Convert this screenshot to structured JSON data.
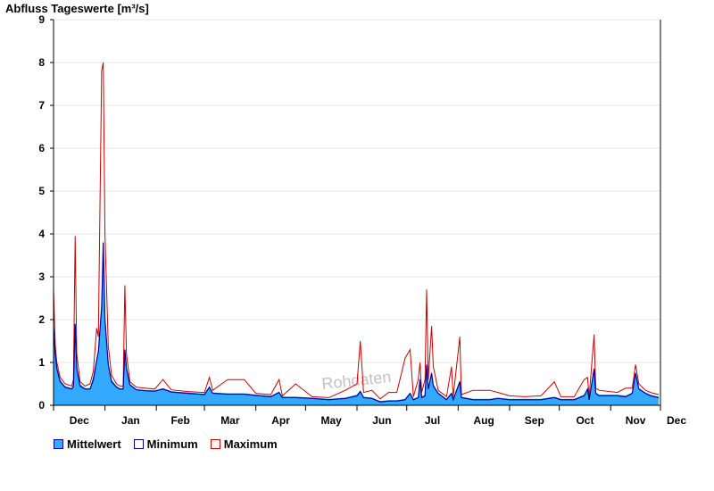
{
  "chart_data": {
    "type": "area",
    "title": "Abfluss Tageswerte [m³/s]",
    "ylim": [
      0,
      9
    ],
    "yticks": [
      "0",
      "1",
      "2",
      "3",
      "4",
      "5",
      "6",
      "7",
      "8",
      "9"
    ],
    "xlabels": [
      "Dec",
      "Jan",
      "Feb",
      "Mar",
      "Apr",
      "May",
      "Jun",
      "Jul",
      "Aug",
      "Sep",
      "Oct",
      "Nov",
      "Dec"
    ],
    "grid": true,
    "legend_position": "bottom-left",
    "watermark": "Rohdaten",
    "colors": {
      "mittelwert_fill": "#33aaff",
      "minimum_line": "#000099",
      "maximum_line": "#cc0000"
    },
    "series": [
      {
        "name": "Mittelwert",
        "points": [
          [
            "2023-12-01",
            2.0
          ],
          [
            "2023-12-02",
            1.3
          ],
          [
            "2023-12-03",
            0.9
          ],
          [
            "2023-12-05",
            0.6
          ],
          [
            "2023-12-08",
            0.45
          ],
          [
            "2023-12-12",
            0.4
          ],
          [
            "2023-12-13",
            0.5
          ],
          [
            "2023-12-14",
            2.0
          ],
          [
            "2023-12-15",
            0.9
          ],
          [
            "2023-12-17",
            0.5
          ],
          [
            "2023-12-20",
            0.4
          ],
          [
            "2023-12-23",
            0.4
          ],
          [
            "2023-12-25",
            0.7
          ],
          [
            "2023-12-27",
            1.1
          ],
          [
            "2023-12-28",
            1.3
          ],
          [
            "2023-12-30",
            2.5
          ],
          [
            "2023-12-31",
            3.9
          ],
          [
            "2024-01-01",
            2.2
          ],
          [
            "2024-01-03",
            1.0
          ],
          [
            "2024-01-05",
            0.6
          ],
          [
            "2024-01-08",
            0.45
          ],
          [
            "2024-01-10",
            0.4
          ],
          [
            "2024-01-12",
            0.4
          ],
          [
            "2024-01-13",
            1.35
          ],
          [
            "2024-01-14",
            0.9
          ],
          [
            "2024-01-16",
            0.5
          ],
          [
            "2024-01-20",
            0.38
          ],
          [
            "2024-01-25",
            0.36
          ],
          [
            "2024-01-31",
            0.35
          ],
          [
            "2024-02-05",
            0.4
          ],
          [
            "2024-02-10",
            0.33
          ],
          [
            "2024-02-20",
            0.3
          ],
          [
            "2024-03-01",
            0.27
          ],
          [
            "2024-03-04",
            0.45
          ],
          [
            "2024-03-06",
            0.3
          ],
          [
            "2024-03-15",
            0.28
          ],
          [
            "2024-03-25",
            0.28
          ],
          [
            "2024-04-01",
            0.25
          ],
          [
            "2024-04-10",
            0.22
          ],
          [
            "2024-04-15",
            0.32
          ],
          [
            "2024-04-17",
            0.2
          ],
          [
            "2024-04-25",
            0.2
          ],
          [
            "2024-05-05",
            0.18
          ],
          [
            "2024-05-15",
            0.15
          ],
          [
            "2024-05-25",
            0.18
          ],
          [
            "2024-06-01",
            0.25
          ],
          [
            "2024-06-03",
            0.35
          ],
          [
            "2024-06-05",
            0.2
          ],
          [
            "2024-06-10",
            0.18
          ],
          [
            "2024-06-15",
            0.1
          ],
          [
            "2024-06-20",
            0.12
          ],
          [
            "2024-06-25",
            0.12
          ],
          [
            "2024-06-30",
            0.15
          ],
          [
            "2024-07-03",
            0.3
          ],
          [
            "2024-07-05",
            0.15
          ],
          [
            "2024-07-08",
            0.2
          ],
          [
            "2024-07-09",
            0.65
          ],
          [
            "2024-07-10",
            0.2
          ],
          [
            "2024-07-12",
            0.25
          ],
          [
            "2024-07-13",
            1.0
          ],
          [
            "2024-07-14",
            0.4
          ],
          [
            "2024-07-16",
            0.8
          ],
          [
            "2024-07-17",
            0.5
          ],
          [
            "2024-07-20",
            0.3
          ],
          [
            "2024-07-25",
            0.15
          ],
          [
            "2024-07-28",
            0.3
          ],
          [
            "2024-07-29",
            0.15
          ],
          [
            "2024-08-02",
            0.6
          ],
          [
            "2024-08-03",
            0.2
          ],
          [
            "2024-08-10",
            0.15
          ],
          [
            "2024-08-20",
            0.15
          ],
          [
            "2024-08-25",
            0.18
          ],
          [
            "2024-09-01",
            0.15
          ],
          [
            "2024-09-10",
            0.15
          ],
          [
            "2024-09-20",
            0.15
          ],
          [
            "2024-09-28",
            0.2
          ],
          [
            "2024-10-02",
            0.15
          ],
          [
            "2024-10-10",
            0.15
          ],
          [
            "2024-10-16",
            0.25
          ],
          [
            "2024-10-18",
            0.4
          ],
          [
            "2024-10-19",
            0.15
          ],
          [
            "2024-10-22",
            0.9
          ],
          [
            "2024-10-23",
            0.3
          ],
          [
            "2024-10-25",
            0.25
          ],
          [
            "2024-11-05",
            0.25
          ],
          [
            "2024-11-10",
            0.22
          ],
          [
            "2024-11-14",
            0.3
          ],
          [
            "2024-11-16",
            0.8
          ],
          [
            "2024-11-18",
            0.4
          ],
          [
            "2024-11-22",
            0.3
          ],
          [
            "2024-11-25",
            0.25
          ],
          [
            "2024-11-30",
            0.2
          ]
        ]
      },
      {
        "name": "Minimum",
        "points": [
          [
            "2023-12-01",
            1.8
          ],
          [
            "2023-12-02",
            1.2
          ],
          [
            "2023-12-03",
            0.85
          ],
          [
            "2023-12-05",
            0.55
          ],
          [
            "2023-12-08",
            0.42
          ],
          [
            "2023-12-12",
            0.38
          ],
          [
            "2023-12-13",
            0.45
          ],
          [
            "2023-12-14",
            1.9
          ],
          [
            "2023-12-15",
            0.85
          ],
          [
            "2023-12-17",
            0.45
          ],
          [
            "2023-12-20",
            0.38
          ],
          [
            "2023-12-23",
            0.38
          ],
          [
            "2023-12-25",
            0.6
          ],
          [
            "2023-12-27",
            1.05
          ],
          [
            "2023-12-28",
            1.25
          ],
          [
            "2023-12-30",
            2.3
          ],
          [
            "2023-12-31",
            3.8
          ],
          [
            "2024-01-01",
            2.0
          ],
          [
            "2024-01-03",
            0.95
          ],
          [
            "2024-01-05",
            0.55
          ],
          [
            "2024-01-08",
            0.42
          ],
          [
            "2024-01-10",
            0.38
          ],
          [
            "2024-01-12",
            0.38
          ],
          [
            "2024-01-13",
            1.3
          ],
          [
            "2024-01-14",
            0.85
          ],
          [
            "2024-01-16",
            0.48
          ],
          [
            "2024-01-20",
            0.36
          ],
          [
            "2024-01-25",
            0.34
          ],
          [
            "2024-01-31",
            0.33
          ],
          [
            "2024-02-05",
            0.38
          ],
          [
            "2024-02-10",
            0.31
          ],
          [
            "2024-02-20",
            0.28
          ],
          [
            "2024-03-01",
            0.25
          ],
          [
            "2024-03-04",
            0.42
          ],
          [
            "2024-03-06",
            0.28
          ],
          [
            "2024-03-15",
            0.26
          ],
          [
            "2024-03-25",
            0.26
          ],
          [
            "2024-04-01",
            0.23
          ],
          [
            "2024-04-10",
            0.2
          ],
          [
            "2024-04-15",
            0.3
          ],
          [
            "2024-04-17",
            0.18
          ],
          [
            "2024-04-25",
            0.18
          ],
          [
            "2024-05-05",
            0.16
          ],
          [
            "2024-05-15",
            0.13
          ],
          [
            "2024-05-25",
            0.16
          ],
          [
            "2024-06-01",
            0.22
          ],
          [
            "2024-06-03",
            0.32
          ],
          [
            "2024-06-05",
            0.18
          ],
          [
            "2024-06-10",
            0.16
          ],
          [
            "2024-06-15",
            0.08
          ],
          [
            "2024-06-20",
            0.1
          ],
          [
            "2024-06-25",
            0.1
          ],
          [
            "2024-06-30",
            0.13
          ],
          [
            "2024-07-03",
            0.28
          ],
          [
            "2024-07-05",
            0.13
          ],
          [
            "2024-07-08",
            0.18
          ],
          [
            "2024-07-09",
            0.6
          ],
          [
            "2024-07-10",
            0.18
          ],
          [
            "2024-07-12",
            0.22
          ],
          [
            "2024-07-13",
            0.95
          ],
          [
            "2024-07-14",
            0.38
          ],
          [
            "2024-07-16",
            0.75
          ],
          [
            "2024-07-17",
            0.45
          ],
          [
            "2024-07-20",
            0.28
          ],
          [
            "2024-07-25",
            0.13
          ],
          [
            "2024-07-28",
            0.28
          ],
          [
            "2024-07-29",
            0.13
          ],
          [
            "2024-08-02",
            0.55
          ],
          [
            "2024-08-03",
            0.18
          ],
          [
            "2024-08-10",
            0.13
          ],
          [
            "2024-08-20",
            0.13
          ],
          [
            "2024-08-25",
            0.16
          ],
          [
            "2024-09-01",
            0.13
          ],
          [
            "2024-09-10",
            0.13
          ],
          [
            "2024-09-20",
            0.13
          ],
          [
            "2024-09-28",
            0.18
          ],
          [
            "2024-10-02",
            0.13
          ],
          [
            "2024-10-10",
            0.13
          ],
          [
            "2024-10-16",
            0.22
          ],
          [
            "2024-10-18",
            0.38
          ],
          [
            "2024-10-19",
            0.13
          ],
          [
            "2024-10-22",
            0.85
          ],
          [
            "2024-10-23",
            0.28
          ],
          [
            "2024-10-25",
            0.22
          ],
          [
            "2024-11-05",
            0.22
          ],
          [
            "2024-11-10",
            0.2
          ],
          [
            "2024-11-14",
            0.28
          ],
          [
            "2024-11-16",
            0.75
          ],
          [
            "2024-11-18",
            0.38
          ],
          [
            "2024-11-22",
            0.28
          ],
          [
            "2024-11-25",
            0.22
          ],
          [
            "2024-11-30",
            0.18
          ]
        ]
      },
      {
        "name": "Maximum",
        "points": [
          [
            "2023-12-01",
            2.7
          ],
          [
            "2023-12-02",
            1.4
          ],
          [
            "2023-12-03",
            1.0
          ],
          [
            "2023-12-05",
            0.65
          ],
          [
            "2023-12-08",
            0.5
          ],
          [
            "2023-12-12",
            0.45
          ],
          [
            "2023-12-13",
            0.6
          ],
          [
            "2023-12-14",
            3.95
          ],
          [
            "2023-12-15",
            1.2
          ],
          [
            "2023-12-17",
            0.55
          ],
          [
            "2023-12-20",
            0.45
          ],
          [
            "2023-12-23",
            0.5
          ],
          [
            "2023-12-25",
            0.8
          ],
          [
            "2023-12-27",
            1.8
          ],
          [
            "2023-12-28",
            1.6
          ],
          [
            "2023-12-30",
            7.8
          ],
          [
            "2023-12-31",
            8.0
          ],
          [
            "2024-01-01",
            4.0
          ],
          [
            "2024-01-03",
            1.4
          ],
          [
            "2024-01-05",
            0.7
          ],
          [
            "2024-01-08",
            0.5
          ],
          [
            "2024-01-10",
            0.45
          ],
          [
            "2024-01-12",
            0.45
          ],
          [
            "2024-01-13",
            2.8
          ],
          [
            "2024-01-14",
            1.2
          ],
          [
            "2024-01-16",
            0.55
          ],
          [
            "2024-01-20",
            0.42
          ],
          [
            "2024-01-25",
            0.4
          ],
          [
            "2024-01-31",
            0.38
          ],
          [
            "2024-02-05",
            0.6
          ],
          [
            "2024-02-10",
            0.36
          ],
          [
            "2024-02-20",
            0.32
          ],
          [
            "2024-03-01",
            0.3
          ],
          [
            "2024-03-04",
            0.65
          ],
          [
            "2024-03-06",
            0.35
          ],
          [
            "2024-03-15",
            0.6
          ],
          [
            "2024-03-25",
            0.6
          ],
          [
            "2024-04-01",
            0.28
          ],
          [
            "2024-04-10",
            0.25
          ],
          [
            "2024-04-15",
            0.6
          ],
          [
            "2024-04-17",
            0.22
          ],
          [
            "2024-04-25",
            0.5
          ],
          [
            "2024-05-05",
            0.2
          ],
          [
            "2024-05-15",
            0.18
          ],
          [
            "2024-05-25",
            0.35
          ],
          [
            "2024-06-01",
            0.5
          ],
          [
            "2024-06-03",
            1.5
          ],
          [
            "2024-06-05",
            0.3
          ],
          [
            "2024-06-10",
            0.35
          ],
          [
            "2024-06-15",
            0.15
          ],
          [
            "2024-06-20",
            0.3
          ],
          [
            "2024-06-25",
            0.3
          ],
          [
            "2024-06-30",
            1.1
          ],
          [
            "2024-07-03",
            1.3
          ],
          [
            "2024-07-05",
            0.2
          ],
          [
            "2024-07-08",
            0.6
          ],
          [
            "2024-07-09",
            1.0
          ],
          [
            "2024-07-10",
            0.3
          ],
          [
            "2024-07-12",
            0.6
          ],
          [
            "2024-07-13",
            2.7
          ],
          [
            "2024-07-14",
            0.6
          ],
          [
            "2024-07-16",
            1.85
          ],
          [
            "2024-07-17",
            0.9
          ],
          [
            "2024-07-20",
            0.35
          ],
          [
            "2024-07-25",
            0.2
          ],
          [
            "2024-07-28",
            0.9
          ],
          [
            "2024-07-29",
            0.2
          ],
          [
            "2024-08-02",
            1.6
          ],
          [
            "2024-08-03",
            0.25
          ],
          [
            "2024-08-10",
            0.35
          ],
          [
            "2024-08-20",
            0.35
          ],
          [
            "2024-08-25",
            0.3
          ],
          [
            "2024-09-01",
            0.22
          ],
          [
            "2024-09-10",
            0.2
          ],
          [
            "2024-09-20",
            0.22
          ],
          [
            "2024-09-28",
            0.55
          ],
          [
            "2024-10-02",
            0.2
          ],
          [
            "2024-10-10",
            0.2
          ],
          [
            "2024-10-16",
            0.6
          ],
          [
            "2024-10-18",
            0.65
          ],
          [
            "2024-10-19",
            0.2
          ],
          [
            "2024-10-22",
            1.65
          ],
          [
            "2024-10-23",
            0.4
          ],
          [
            "2024-10-25",
            0.35
          ],
          [
            "2024-11-05",
            0.3
          ],
          [
            "2024-11-10",
            0.4
          ],
          [
            "2024-11-14",
            0.4
          ],
          [
            "2024-11-16",
            0.95
          ],
          [
            "2024-11-18",
            0.5
          ],
          [
            "2024-11-22",
            0.35
          ],
          [
            "2024-11-25",
            0.3
          ],
          [
            "2024-11-30",
            0.25
          ]
        ]
      }
    ]
  }
}
